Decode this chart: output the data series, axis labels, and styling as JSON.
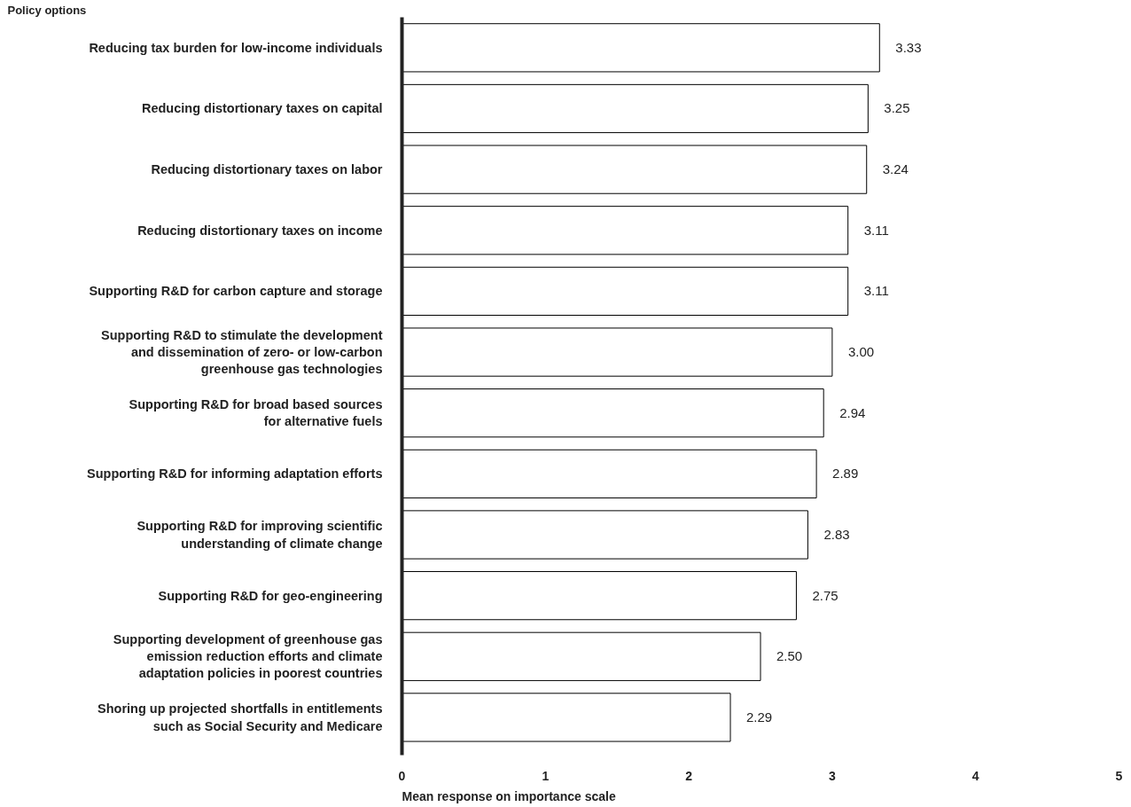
{
  "chart_data": {
    "type": "bar",
    "orientation": "horizontal",
    "ylabel": "Policy options",
    "xlabel": "Mean response on importance scale",
    "categories": [
      "Reducing tax burden for low-income individuals",
      "Reducing distortionary taxes on capital",
      "Reducing distortionary taxes on labor",
      "Reducing distortionary taxes on income",
      "Supporting R&D for carbon capture and storage",
      "Supporting R&D to stimulate the development\nand dissemination of zero- or low-carbon\ngreenhouse gas technologies",
      "Supporting R&D for broad based sources\nfor alternative fuels",
      "Supporting R&D for informing adaptation efforts",
      "Supporting R&D for improving scientific\nunderstanding of climate change",
      "Supporting R&D for geo-engineering",
      "Supporting development of greenhouse gas\nemission reduction efforts and climate\nadaptation policies in poorest countries",
      "Shoring up projected shortfalls in entitlements\nsuch as Social Security and Medicare"
    ],
    "values": [
      3.33,
      3.25,
      3.24,
      3.11,
      3.11,
      3.0,
      2.94,
      2.89,
      2.83,
      2.75,
      2.5,
      2.29
    ],
    "value_labels": [
      "3.33",
      "3.25",
      "3.24",
      "3.11",
      "3.11",
      "3.00",
      "2.94",
      "2.89",
      "2.83",
      "2.75",
      "2.50",
      "2.29"
    ],
    "color": "#ffffff",
    "xlim": [
      0,
      5
    ],
    "xticks": [
      0,
      1,
      2,
      3,
      4,
      5
    ],
    "grid": false
  }
}
